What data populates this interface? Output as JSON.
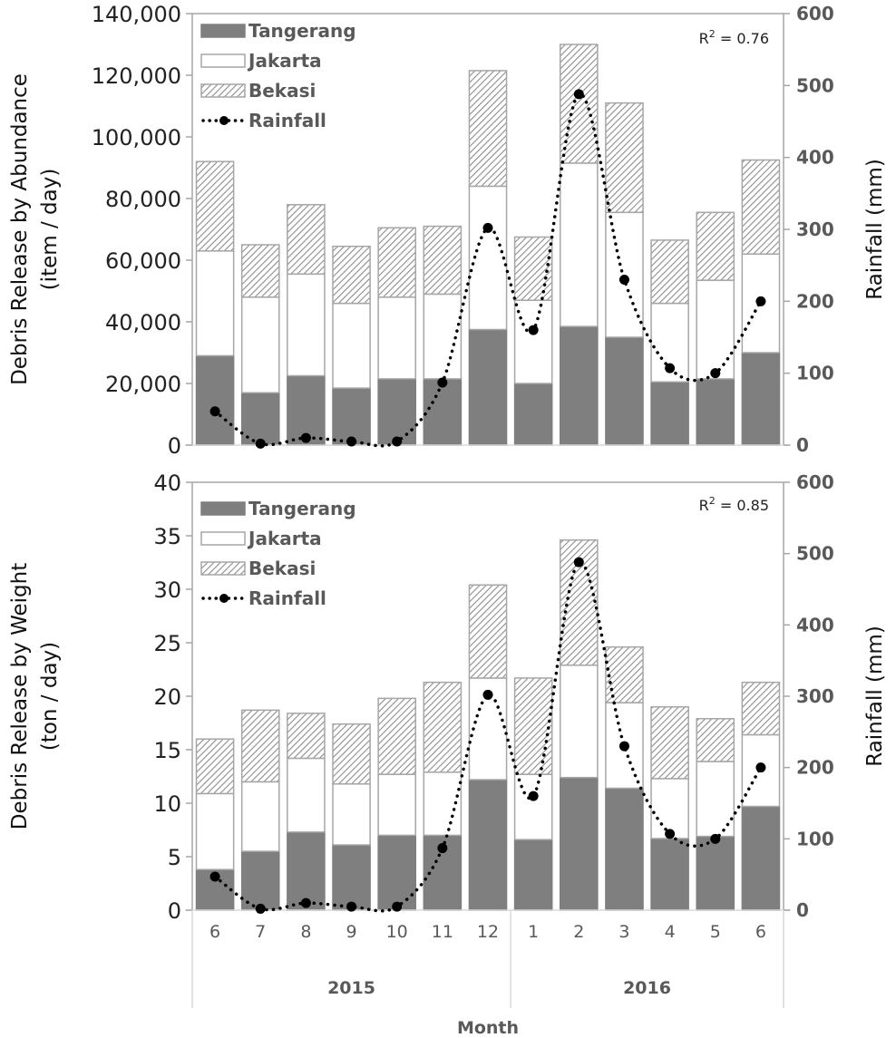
{
  "colors": {
    "tangerang": "#7f7f7f",
    "jakarta": "#ffffff",
    "bekasi_bg": "#ffffff",
    "bekasi_hatch": "#9a9a9a",
    "bar_edge": "#a6a6a6",
    "axis": "#a6a6a6",
    "rainfall": "#000000"
  },
  "x_axis": {
    "title": "Month",
    "months": [
      "6",
      "7",
      "8",
      "9",
      "10",
      "11",
      "12",
      "1",
      "2",
      "3",
      "4",
      "5",
      "6"
    ],
    "years": [
      {
        "label": "2015",
        "span": [
          0,
          6
        ]
      },
      {
        "label": "2016",
        "span": [
          7,
          12
        ]
      }
    ]
  },
  "chart_data": [
    {
      "type": "bar",
      "stacked": true,
      "title": "",
      "ylabel_line1": "Debris Release  by Abundance",
      "ylabel_line2": "(item / day)",
      "y2label": "Rainfall (mm)",
      "ylim": [
        0,
        140000
      ],
      "yticks": [
        0,
        20000,
        40000,
        60000,
        80000,
        100000,
        120000,
        140000
      ],
      "ytick_labels": [
        "0",
        "20,000",
        "40,000",
        "60,000",
        "80,000",
        "100,000",
        "120,000",
        "140,000"
      ],
      "y2lim": [
        0,
        600
      ],
      "y2ticks": [
        0,
        100,
        200,
        300,
        400,
        500,
        600
      ],
      "y2tick_labels": [
        "0",
        "100",
        "200",
        "300",
        "400",
        "500",
        "600"
      ],
      "annotation": {
        "base": "R",
        "sup": "2",
        "rest": " = 0.76"
      },
      "legend": {
        "placement": "top-left",
        "entries": [
          "Tangerang",
          "Jakarta",
          "Bekasi",
          "Rainfall"
        ]
      },
      "categories": [
        "6",
        "7",
        "8",
        "9",
        "10",
        "11",
        "12",
        "1",
        "2",
        "3",
        "4",
        "5",
        "6"
      ],
      "series": [
        {
          "name": "Tangerang",
          "axis": "left",
          "kind": "bar",
          "values": [
            29000,
            17000,
            22500,
            18500,
            21500,
            21500,
            37500,
            20000,
            38500,
            35000,
            20500,
            21500,
            30000
          ]
        },
        {
          "name": "Jakarta",
          "axis": "left",
          "kind": "bar",
          "values": [
            34000,
            31000,
            33000,
            27500,
            26500,
            27500,
            46500,
            27000,
            53000,
            40500,
            25500,
            32000,
            32000
          ]
        },
        {
          "name": "Bekasi",
          "axis": "left",
          "kind": "bar",
          "values": [
            29000,
            17000,
            22500,
            18500,
            22500,
            22000,
            37500,
            20500,
            38500,
            35500,
            20500,
            22000,
            30500
          ]
        },
        {
          "name": "Rainfall",
          "axis": "right",
          "kind": "line",
          "values": [
            47,
            2,
            10,
            5,
            5,
            87,
            302,
            160,
            488,
            230,
            107,
            100,
            200
          ]
        }
      ]
    },
    {
      "type": "bar",
      "stacked": true,
      "title": "",
      "ylabel_line1": "Debris Release  by Weight",
      "ylabel_line2": "(ton / day)",
      "y2label": "Rainfall (mm)",
      "ylim": [
        0,
        40
      ],
      "yticks": [
        0,
        5,
        10,
        15,
        20,
        25,
        30,
        35,
        40
      ],
      "ytick_labels": [
        "0",
        "5",
        "10",
        "15",
        "20",
        "25",
        "30",
        "35",
        "40"
      ],
      "y2lim": [
        0,
        600
      ],
      "y2ticks": [
        0,
        100,
        200,
        300,
        400,
        500,
        600
      ],
      "y2tick_labels": [
        "0",
        "100",
        "200",
        "300",
        "400",
        "500",
        "600"
      ],
      "annotation": {
        "base": "R",
        "sup": "2",
        "rest": " = 0.85"
      },
      "legend": {
        "placement": "top-left",
        "entries": [
          "Tangerang",
          "Jakarta",
          "Bekasi",
          "Rainfall"
        ]
      },
      "categories": [
        "6",
        "7",
        "8",
        "9",
        "10",
        "11",
        "12",
        "1",
        "2",
        "3",
        "4",
        "5",
        "6"
      ],
      "series": [
        {
          "name": "Tangerang",
          "axis": "left",
          "kind": "bar",
          "values": [
            3.8,
            5.5,
            7.3,
            6.1,
            7.0,
            7.0,
            12.2,
            6.6,
            12.4,
            11.4,
            6.7,
            6.9,
            9.7
          ]
        },
        {
          "name": "Jakarta",
          "axis": "left",
          "kind": "bar",
          "values": [
            7.1,
            6.5,
            6.9,
            5.7,
            5.7,
            5.9,
            9.5,
            6.1,
            10.5,
            8.0,
            5.6,
            7.0,
            6.7
          ]
        },
        {
          "name": "Bekasi",
          "axis": "left",
          "kind": "bar",
          "values": [
            5.1,
            6.7,
            4.2,
            5.6,
            7.1,
            8.4,
            8.7,
            9.0,
            11.7,
            5.2,
            6.7,
            4.0,
            4.9
          ]
        },
        {
          "name": "Rainfall",
          "axis": "right",
          "kind": "line",
          "values": [
            47,
            2,
            10,
            5,
            5,
            87,
            302,
            160,
            488,
            230,
            107,
            100,
            200
          ]
        }
      ]
    }
  ]
}
